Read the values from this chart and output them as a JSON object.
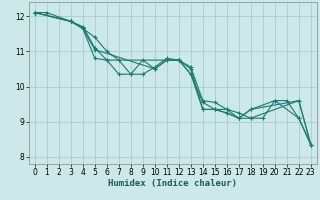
{
  "xlabel": "Humidex (Indice chaleur)",
  "xlim": [
    -0.5,
    23.5
  ],
  "ylim": [
    7.8,
    12.4
  ],
  "yticks": [
    8,
    9,
    10,
    11,
    12
  ],
  "xticks": [
    0,
    1,
    2,
    3,
    4,
    5,
    6,
    7,
    8,
    9,
    10,
    11,
    12,
    13,
    14,
    15,
    16,
    17,
    18,
    19,
    20,
    21,
    22,
    23
  ],
  "bg_color": "#cce8e8",
  "grid_color": "#aacccc",
  "line_color": "#1a7a6e",
  "lines": [
    {
      "x": [
        0,
        1,
        3,
        4,
        5,
        6,
        7,
        8,
        9,
        10,
        11,
        12,
        13,
        14,
        15,
        16,
        17,
        18,
        19,
        20,
        21,
        22,
        23
      ],
      "y": [
        12.1,
        12.1,
        11.85,
        11.7,
        11.1,
        10.75,
        10.35,
        10.35,
        10.35,
        10.55,
        10.8,
        10.75,
        10.35,
        9.55,
        9.35,
        9.35,
        9.25,
        9.1,
        9.1,
        9.6,
        9.6,
        9.1,
        8.35
      ]
    },
    {
      "x": [
        0,
        3,
        4,
        5,
        6,
        7,
        8,
        9,
        10,
        11,
        12,
        13,
        14,
        15,
        16,
        17,
        18,
        22,
        23
      ],
      "y": [
        12.1,
        11.85,
        11.65,
        11.4,
        11.0,
        10.75,
        10.35,
        10.75,
        10.5,
        10.75,
        10.75,
        10.55,
        9.6,
        9.55,
        9.35,
        9.1,
        9.35,
        9.6,
        8.35
      ]
    },
    {
      "x": [
        0,
        3,
        4,
        5,
        10,
        11,
        12,
        13,
        14,
        15,
        16,
        17,
        18,
        20,
        22,
        23
      ],
      "y": [
        12.1,
        11.85,
        11.65,
        11.05,
        10.5,
        10.75,
        10.75,
        10.35,
        9.35,
        9.35,
        9.25,
        9.1,
        9.35,
        9.6,
        9.1,
        8.35
      ]
    },
    {
      "x": [
        0,
        3,
        4,
        5,
        6,
        12,
        13,
        14,
        15,
        16,
        17,
        18,
        22,
        23
      ],
      "y": [
        12.1,
        11.85,
        11.65,
        10.8,
        10.75,
        10.75,
        10.5,
        9.35,
        9.35,
        9.25,
        9.1,
        9.1,
        9.6,
        8.35
      ]
    }
  ]
}
